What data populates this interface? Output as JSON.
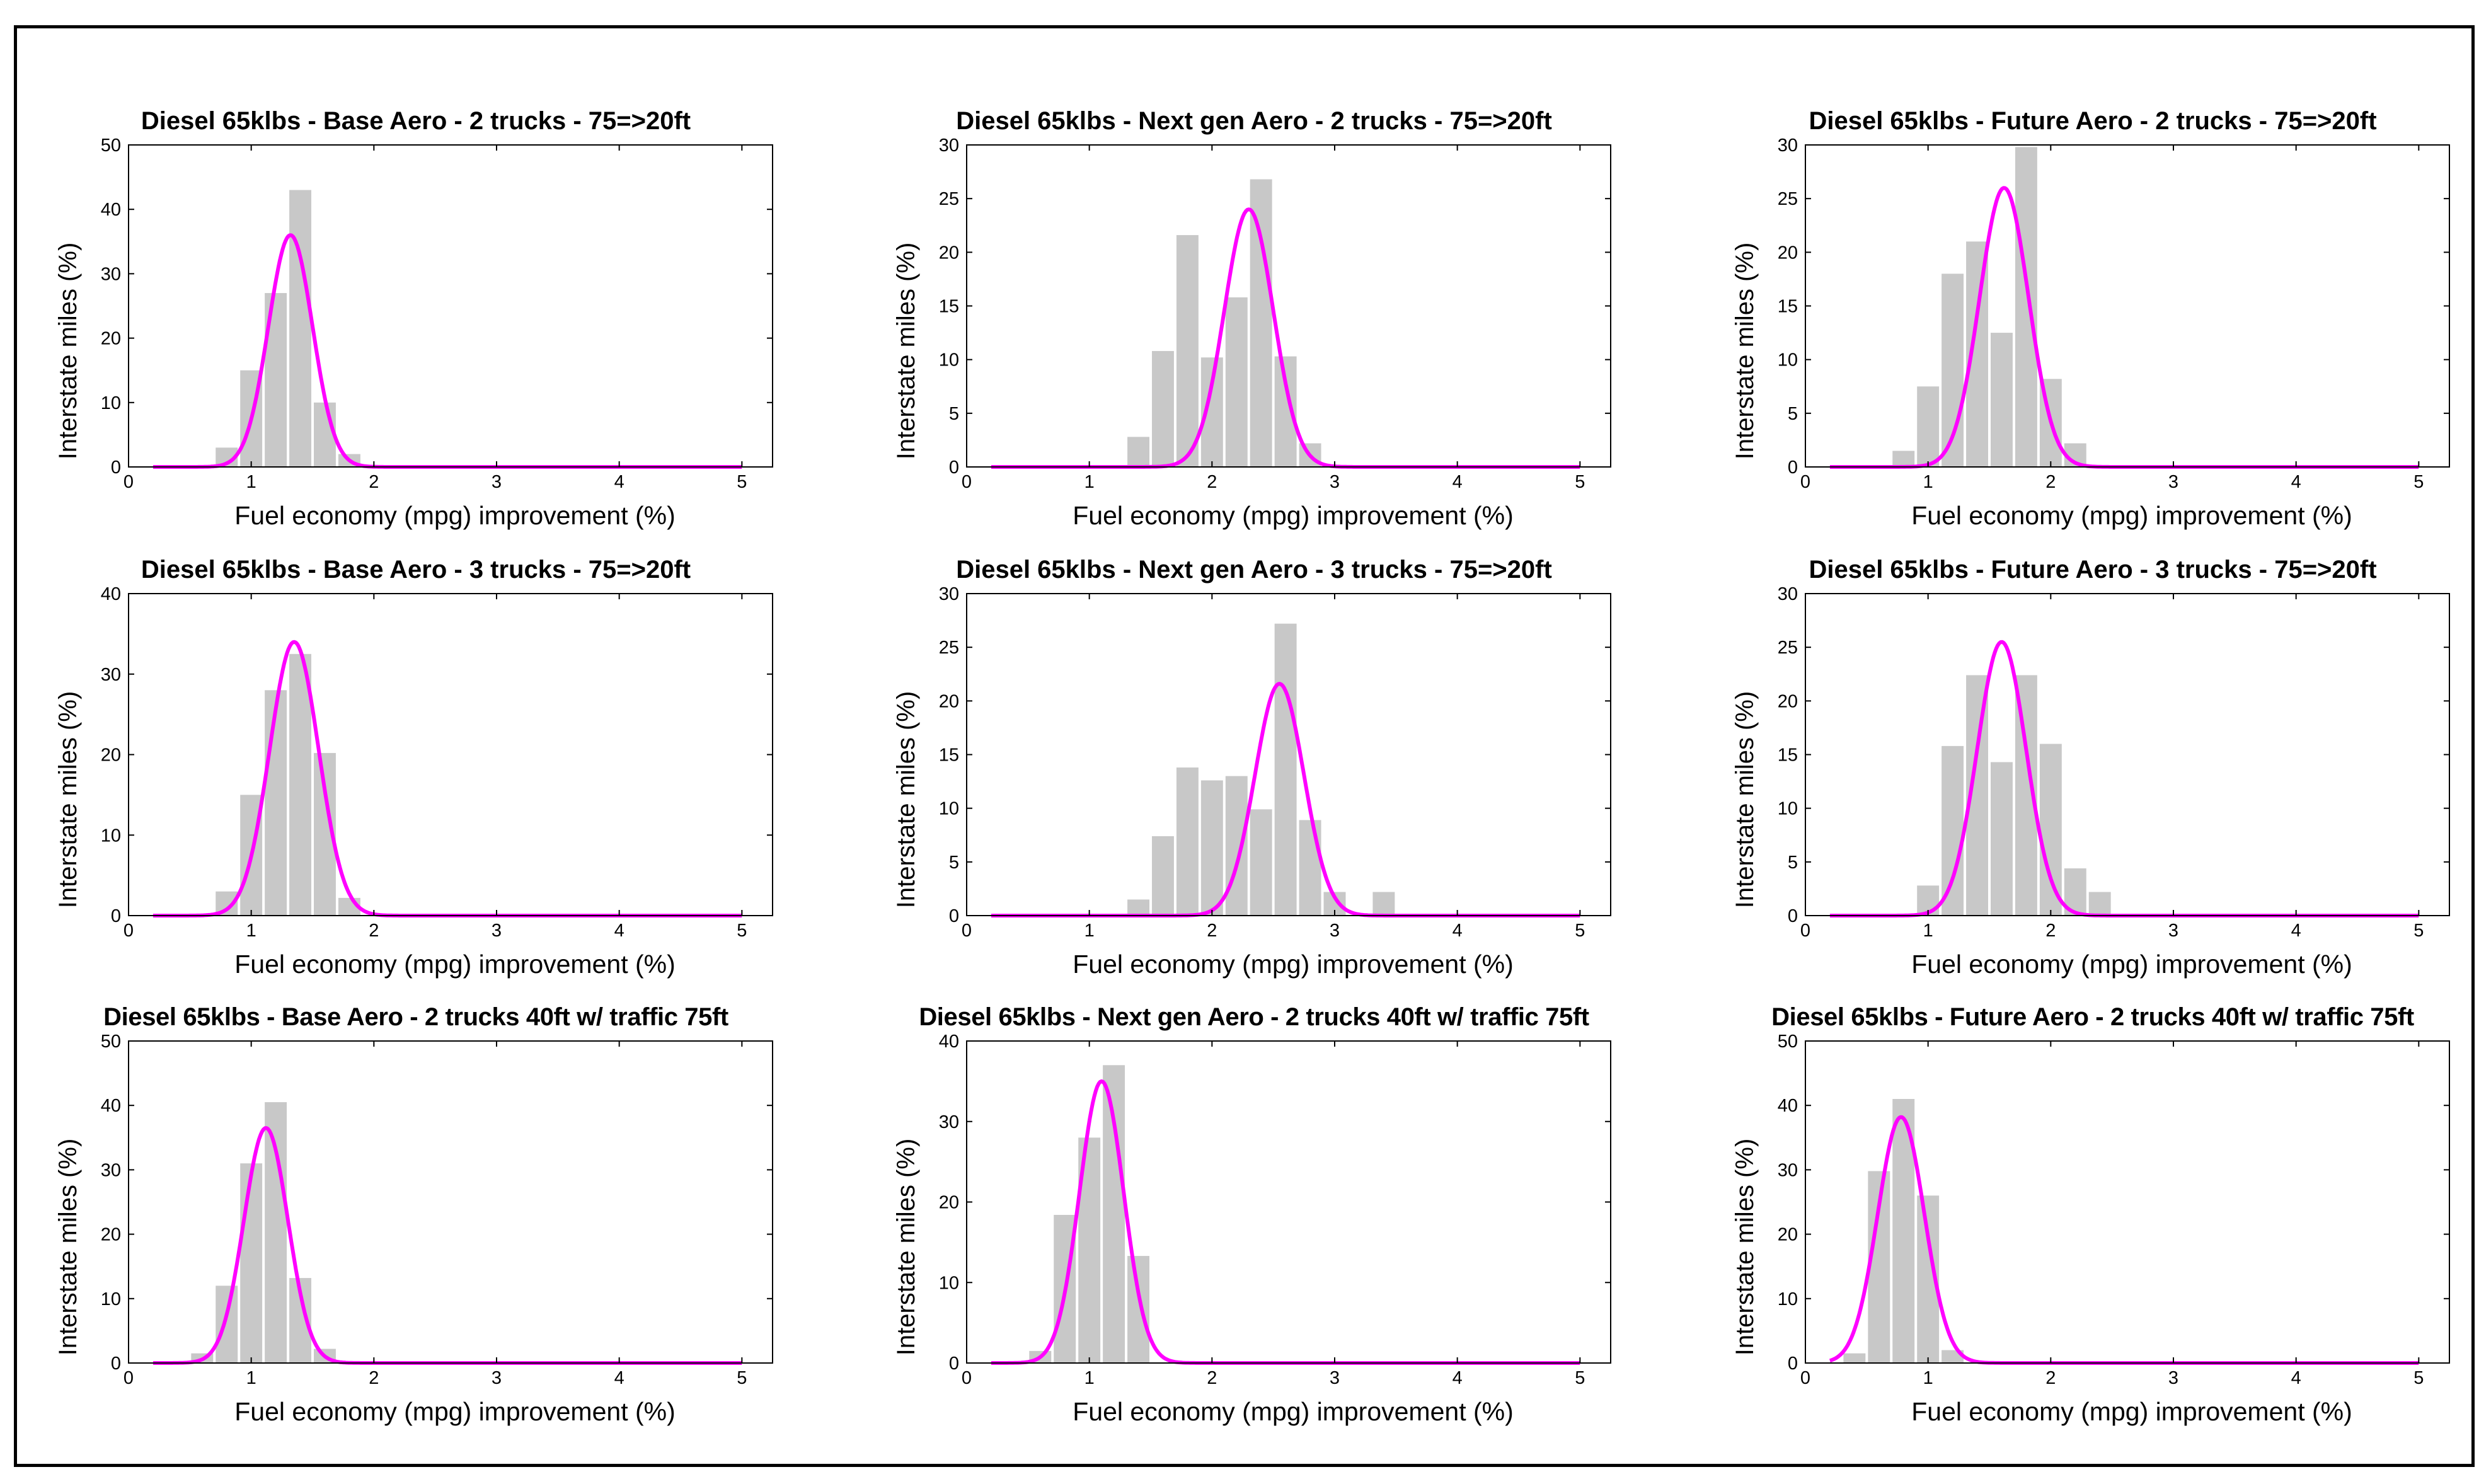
{
  "colors": {
    "bars": "#c8c8c8",
    "curve": "#ff00ff",
    "axis": "#000000"
  },
  "chart_data": [
    {
      "type": "bar",
      "title": "Diesel 65klbs - Base Aero - 2 trucks - 75=>20ft",
      "xlabel": "Fuel economy (mpg) improvement (%)",
      "ylabel": "Interstate miles (%)",
      "xlim": [
        0,
        5.25
      ],
      "ylim": [
        0,
        50
      ],
      "xticks": [
        0,
        1,
        2,
        3,
        4,
        5
      ],
      "yticks": [
        0,
        10,
        20,
        30,
        40,
        50
      ],
      "bin_width": 0.2,
      "bars": [
        {
          "x": 0.8,
          "y": 3
        },
        {
          "x": 1.0,
          "y": 15
        },
        {
          "x": 1.2,
          "y": 27
        },
        {
          "x": 1.4,
          "y": 43
        },
        {
          "x": 1.6,
          "y": 10
        },
        {
          "x": 1.8,
          "y": 2
        }
      ],
      "fit": {
        "name": "normal fit",
        "mean": 1.32,
        "sd": 0.18,
        "peak": 36,
        "x_range": [
          0.2,
          5
        ]
      }
    },
    {
      "type": "bar",
      "title": "Diesel 65klbs - Next gen Aero - 2 trucks - 75=>20ft",
      "xlabel": "Fuel economy (mpg) improvement (%)",
      "ylabel": "Interstate miles (%)",
      "xlim": [
        0,
        5.25
      ],
      "ylim": [
        0,
        30
      ],
      "xticks": [
        0,
        1,
        2,
        3,
        4,
        5
      ],
      "yticks": [
        0,
        5,
        10,
        15,
        20,
        25,
        30
      ],
      "bin_width": 0.2,
      "bars": [
        {
          "x": 1.4,
          "y": 2.8
        },
        {
          "x": 1.6,
          "y": 10.8
        },
        {
          "x": 1.8,
          "y": 21.6
        },
        {
          "x": 2.0,
          "y": 10.2
        },
        {
          "x": 2.2,
          "y": 15.8
        },
        {
          "x": 2.4,
          "y": 26.8
        },
        {
          "x": 2.6,
          "y": 10.3
        },
        {
          "x": 2.8,
          "y": 2.2
        }
      ],
      "fit": {
        "name": "normal fit",
        "mean": 2.3,
        "sd": 0.2,
        "peak": 24,
        "x_range": [
          0.2,
          5
        ]
      }
    },
    {
      "type": "bar",
      "title": "Diesel 65klbs - Future Aero - 2 trucks - 75=>20ft",
      "xlabel": "Fuel economy (mpg) improvement (%)",
      "ylabel": "Interstate miles (%)",
      "xlim": [
        0,
        5.25
      ],
      "ylim": [
        0,
        30
      ],
      "xticks": [
        0,
        1,
        2,
        3,
        4,
        5
      ],
      "yticks": [
        0,
        5,
        10,
        15,
        20,
        25,
        30
      ],
      "bin_width": 0.2,
      "bars": [
        {
          "x": 0.8,
          "y": 1.5
        },
        {
          "x": 1.0,
          "y": 7.5
        },
        {
          "x": 1.2,
          "y": 18
        },
        {
          "x": 1.4,
          "y": 21
        },
        {
          "x": 1.6,
          "y": 12.5
        },
        {
          "x": 1.8,
          "y": 29.8
        },
        {
          "x": 2.0,
          "y": 8.2
        },
        {
          "x": 2.2,
          "y": 2.2
        }
      ],
      "fit": {
        "name": "normal fit",
        "mean": 1.62,
        "sd": 0.2,
        "peak": 26,
        "x_range": [
          0.2,
          5
        ]
      }
    },
    {
      "type": "bar",
      "title": "Diesel 65klbs - Base Aero - 3 trucks - 75=>20ft",
      "xlabel": "Fuel economy (mpg) improvement (%)",
      "ylabel": "Interstate miles (%)",
      "xlim": [
        0,
        5.25
      ],
      "ylim": [
        0,
        40
      ],
      "xticks": [
        0,
        1,
        2,
        3,
        4,
        5
      ],
      "yticks": [
        0,
        10,
        20,
        30,
        40
      ],
      "bin_width": 0.2,
      "bars": [
        {
          "x": 0.8,
          "y": 3
        },
        {
          "x": 1.0,
          "y": 15
        },
        {
          "x": 1.2,
          "y": 28
        },
        {
          "x": 1.4,
          "y": 32.5
        },
        {
          "x": 1.6,
          "y": 20.2
        },
        {
          "x": 1.8,
          "y": 2.2
        }
      ],
      "fit": {
        "name": "normal fit",
        "mean": 1.35,
        "sd": 0.2,
        "peak": 34,
        "x_range": [
          0.2,
          5
        ]
      }
    },
    {
      "type": "bar",
      "title": "Diesel 65klbs - Next gen Aero - 3 trucks - 75=>20ft",
      "xlabel": "Fuel economy (mpg) improvement (%)",
      "ylabel": "Interstate miles (%)",
      "xlim": [
        0,
        5.25
      ],
      "ylim": [
        0,
        30
      ],
      "xticks": [
        0,
        1,
        2,
        3,
        4,
        5
      ],
      "yticks": [
        0,
        5,
        10,
        15,
        20,
        25,
        30
      ],
      "bin_width": 0.2,
      "bars": [
        {
          "x": 1.4,
          "y": 1.5
        },
        {
          "x": 1.6,
          "y": 7.4
        },
        {
          "x": 1.8,
          "y": 13.8
        },
        {
          "x": 2.0,
          "y": 12.6
        },
        {
          "x": 2.2,
          "y": 13
        },
        {
          "x": 2.4,
          "y": 9.9
        },
        {
          "x": 2.6,
          "y": 27.2
        },
        {
          "x": 2.8,
          "y": 8.9
        },
        {
          "x": 3.0,
          "y": 2.2
        },
        {
          "x": 3.4,
          "y": 2.2
        }
      ],
      "fit": {
        "name": "normal fit",
        "mean": 2.55,
        "sd": 0.2,
        "peak": 21.6,
        "x_range": [
          0.2,
          5
        ]
      }
    },
    {
      "type": "bar",
      "title": "Diesel 65klbs - Future Aero - 3 trucks - 75=>20ft",
      "xlabel": "Fuel economy (mpg) improvement (%)",
      "ylabel": "Interstate miles (%)",
      "xlim": [
        0,
        5.25
      ],
      "ylim": [
        0,
        30
      ],
      "xticks": [
        0,
        1,
        2,
        3,
        4,
        5
      ],
      "yticks": [
        0,
        5,
        10,
        15,
        20,
        25,
        30
      ],
      "bin_width": 0.2,
      "bars": [
        {
          "x": 1.0,
          "y": 2.8
        },
        {
          "x": 1.2,
          "y": 15.8
        },
        {
          "x": 1.4,
          "y": 22.4
        },
        {
          "x": 1.6,
          "y": 14.3
        },
        {
          "x": 1.8,
          "y": 22.4
        },
        {
          "x": 2.0,
          "y": 16
        },
        {
          "x": 2.2,
          "y": 4.4
        },
        {
          "x": 2.4,
          "y": 2.2
        }
      ],
      "fit": {
        "name": "normal fit",
        "mean": 1.6,
        "sd": 0.2,
        "peak": 25.5,
        "x_range": [
          0.2,
          5
        ]
      }
    },
    {
      "type": "bar",
      "title": "Diesel 65klbs - Base Aero - 2 trucks 40ft w/ traffic 75ft",
      "xlabel": "Fuel economy (mpg) improvement (%)",
      "ylabel": "Interstate miles (%)",
      "xlim": [
        0,
        5.25
      ],
      "ylim": [
        0,
        50
      ],
      "xticks": [
        0,
        1,
        2,
        3,
        4,
        5
      ],
      "yticks": [
        0,
        10,
        20,
        30,
        40,
        50
      ],
      "bin_width": 0.2,
      "bars": [
        {
          "x": 0.6,
          "y": 1.5
        },
        {
          "x": 0.8,
          "y": 12
        },
        {
          "x": 1.0,
          "y": 31
        },
        {
          "x": 1.2,
          "y": 40.5
        },
        {
          "x": 1.4,
          "y": 13.2
        },
        {
          "x": 1.6,
          "y": 2.2
        }
      ],
      "fit": {
        "name": "normal fit",
        "mean": 1.12,
        "sd": 0.18,
        "peak": 36.5,
        "x_range": [
          0.2,
          5
        ]
      }
    },
    {
      "type": "bar",
      "title": "Diesel 65klbs - Next gen Aero - 2 trucks 40ft w/ traffic 75ft",
      "xlabel": "Fuel economy (mpg) improvement (%)",
      "ylabel": "Interstate miles (%)",
      "xlim": [
        0,
        5.25
      ],
      "ylim": [
        0,
        40
      ],
      "xticks": [
        0,
        1,
        2,
        3,
        4,
        5
      ],
      "yticks": [
        0,
        10,
        20,
        30,
        40
      ],
      "bin_width": 0.2,
      "bars": [
        {
          "x": 0.6,
          "y": 1.5
        },
        {
          "x": 0.8,
          "y": 18.4
        },
        {
          "x": 1.0,
          "y": 28
        },
        {
          "x": 1.2,
          "y": 37
        },
        {
          "x": 1.4,
          "y": 13.3
        }
      ],
      "fit": {
        "name": "normal fit",
        "mean": 1.1,
        "sd": 0.18,
        "peak": 35,
        "x_range": [
          0.2,
          5
        ]
      }
    },
    {
      "type": "bar",
      "title": "Diesel 65klbs - Future Aero - 2 trucks 40ft w/ traffic 75ft",
      "xlabel": "Fuel economy (mpg) improvement (%)",
      "ylabel": "Interstate miles (%)",
      "xlim": [
        0,
        5.25
      ],
      "ylim": [
        0,
        50
      ],
      "xticks": [
        0,
        1,
        2,
        3,
        4,
        5
      ],
      "yticks": [
        0,
        10,
        20,
        30,
        40,
        50
      ],
      "bin_width": 0.2,
      "bars": [
        {
          "x": 0.4,
          "y": 1.5
        },
        {
          "x": 0.6,
          "y": 29.8
        },
        {
          "x": 0.8,
          "y": 41
        },
        {
          "x": 1.0,
          "y": 26
        },
        {
          "x": 1.2,
          "y": 2
        }
      ],
      "fit": {
        "name": "normal fit",
        "mean": 0.78,
        "sd": 0.19,
        "peak": 38.2,
        "x_range": [
          0.2,
          5
        ]
      }
    }
  ]
}
